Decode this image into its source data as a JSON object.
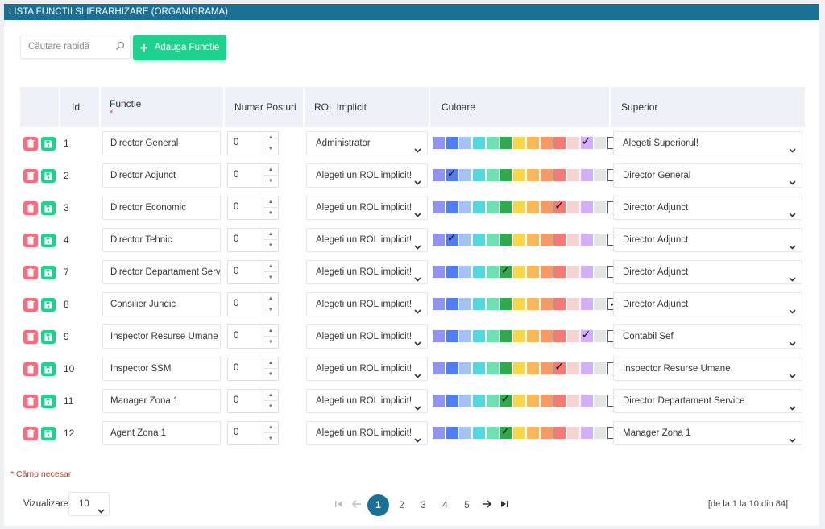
{
  "header": {
    "title": "LISTA FUNCTII SI IERARHIZARE (ORGANIGRAMA)"
  },
  "toolbar": {
    "search_placeholder": "Căutare rapidă",
    "add_label": "Adauga Functie"
  },
  "columns": {
    "id": "Id",
    "functie": "Functie",
    "functie_required": "*",
    "numar_posturi": "Numar Posturi",
    "rol": "ROL Implicit",
    "culoare": "Culoare",
    "superior": "Superior"
  },
  "palette": [
    "#8f94f0",
    "#4f7ef0",
    "#a6c2f2",
    "#56d6e0",
    "#6fe0b4",
    "#2fa84f",
    "#f7d64a",
    "#f9b85a",
    "#f59a66",
    "#f47b73",
    "#f7d2d2",
    "#d6aef7",
    "#e4e4e4",
    "#ffffff"
  ],
  "rows": [
    {
      "id": "1",
      "functie": "Director General",
      "posturi": "0",
      "rol": "Administrator",
      "superior": "Alegeti Superiorul!",
      "culoare_index": 11
    },
    {
      "id": "2",
      "functie": "Director Adjunct",
      "posturi": "0",
      "rol": "Alegeti un ROL implicit!",
      "superior": "Director General",
      "culoare_index": 1
    },
    {
      "id": "3",
      "functie": "Director Economic",
      "posturi": "0",
      "rol": "Alegeti un ROL implicit!",
      "superior": "Director Adjunct",
      "culoare_index": 9
    },
    {
      "id": "4",
      "functie": "Director Tehnic",
      "posturi": "0",
      "rol": "Alegeti un ROL implicit!",
      "superior": "Director Adjunct",
      "culoare_index": 1
    },
    {
      "id": "7",
      "functie": "Director Departament Serv",
      "posturi": "0",
      "rol": "Alegeti un ROL implicit!",
      "superior": "Director Adjunct",
      "culoare_index": 5
    },
    {
      "id": "8",
      "functie": "Consilier Juridic",
      "posturi": "0",
      "rol": "Alegeti un ROL implicit!",
      "superior": "Director Adjunct",
      "culoare_index": 13
    },
    {
      "id": "9",
      "functie": "Inspector Resurse Umane",
      "posturi": "0",
      "rol": "Alegeti un ROL implicit!",
      "superior": "Contabil Sef",
      "culoare_index": 11
    },
    {
      "id": "10",
      "functie": "Inspector SSM",
      "posturi": "0",
      "rol": "Alegeti un ROL implicit!",
      "superior": "Inspector Resurse Umane",
      "culoare_index": 9
    },
    {
      "id": "11",
      "functie": "Manager Zona 1",
      "posturi": "0",
      "rol": "Alegeti un ROL implicit!",
      "superior": "Director Departament Service",
      "culoare_index": 5
    },
    {
      "id": "12",
      "functie": "Agent Zona 1",
      "posturi": "0",
      "rol": "Alegeti un ROL implicit!",
      "superior": "Manager Zona 1",
      "culoare_index": 5
    }
  ],
  "footer": {
    "required_note": "* Câmp necesar",
    "viz_label": "Vizualizare",
    "viz_value": "10",
    "pages": [
      "1",
      "2",
      "3",
      "4",
      "5"
    ],
    "current_page": "1",
    "info": "[de la 1 la 10 din 84]"
  }
}
